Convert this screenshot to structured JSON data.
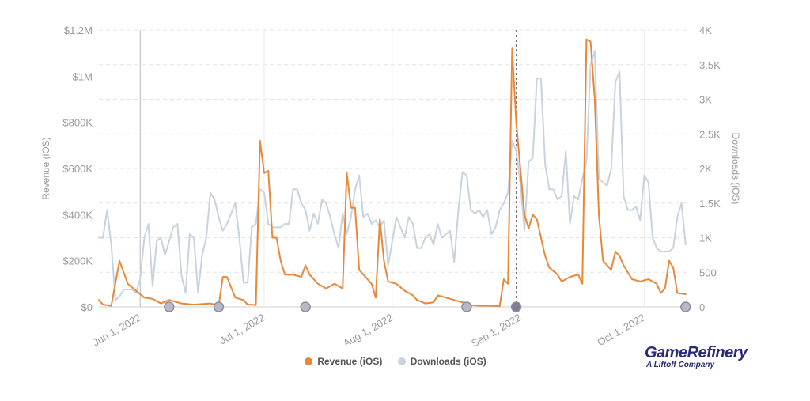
{
  "chart_data": {
    "type": "line",
    "title": "",
    "x_start": "2022-05-22",
    "x_end": "2022-10-12",
    "x_ticks": [
      {
        "date": "2022-06-01",
        "label": "Jun 1, 2022"
      },
      {
        "date": "2022-07-01",
        "label": "Jul 1, 2022"
      },
      {
        "date": "2022-08-01",
        "label": "Aug 1, 2022"
      },
      {
        "date": "2022-09-01",
        "label": "Sep 1, 2022"
      },
      {
        "date": "2022-10-01",
        "label": "Oct 1, 2022"
      }
    ],
    "y_left": {
      "label": "Revenue (iOS)",
      "range": [
        0,
        1200000
      ],
      "ticks": [
        {
          "value": 0,
          "label": "$0"
        },
        {
          "value": 200000,
          "label": "$200K"
        },
        {
          "value": 400000,
          "label": "$400K"
        },
        {
          "value": 600000,
          "label": "$600K"
        },
        {
          "value": 800000,
          "label": "$800K"
        },
        {
          "value": 1000000,
          "label": "$1M"
        },
        {
          "value": 1200000,
          "label": "$1.2M"
        }
      ]
    },
    "y_right": {
      "label": "Downloads (iOS)",
      "range": [
        0,
        4000
      ],
      "ticks": [
        {
          "value": 0,
          "label": "0"
        },
        {
          "value": 500,
          "label": "500"
        },
        {
          "value": 1000,
          "label": "1K"
        },
        {
          "value": 1500,
          "label": "1.5K"
        },
        {
          "value": 2000,
          "label": "2K"
        },
        {
          "value": 2500,
          "label": "2.5K"
        },
        {
          "value": 3000,
          "label": "3K"
        },
        {
          "value": 3500,
          "label": "3.5K"
        },
        {
          "value": 4000,
          "label": "4K"
        }
      ]
    },
    "grid": true,
    "legend_position": "bottom",
    "vertical_markers": [
      {
        "date": "2022-06-01",
        "style": "solid"
      },
      {
        "date": "2022-08-31",
        "style": "dashed"
      }
    ],
    "event_markers": [
      "2022-06-08",
      "2022-06-20",
      "2022-07-11",
      "2022-08-19",
      "2022-08-31",
      "2022-10-11"
    ],
    "series": [
      {
        "name": "Revenue (iOS)",
        "axis": "left",
        "color": "#e8883a",
        "points": [
          [
            "2022-05-22",
            30000
          ],
          [
            "2022-05-23",
            10000
          ],
          [
            "2022-05-25",
            5000
          ],
          [
            "2022-05-27",
            200000
          ],
          [
            "2022-05-29",
            100000
          ],
          [
            "2022-05-31",
            70000
          ],
          [
            "2022-06-02",
            40000
          ],
          [
            "2022-06-04",
            35000
          ],
          [
            "2022-06-06",
            15000
          ],
          [
            "2022-06-08",
            30000
          ],
          [
            "2022-06-11",
            15000
          ],
          [
            "2022-06-14",
            10000
          ],
          [
            "2022-06-18",
            15000
          ],
          [
            "2022-06-20",
            5000
          ],
          [
            "2022-06-21",
            130000
          ],
          [
            "2022-06-22",
            130000
          ],
          [
            "2022-06-24",
            40000
          ],
          [
            "2022-06-26",
            30000
          ],
          [
            "2022-06-27",
            10000
          ],
          [
            "2022-06-28",
            10000
          ],
          [
            "2022-06-29",
            8000
          ],
          [
            "2022-06-30",
            720000
          ],
          [
            "2022-07-01",
            580000
          ],
          [
            "2022-07-02",
            590000
          ],
          [
            "2022-07-03",
            300000
          ],
          [
            "2022-07-04",
            300000
          ],
          [
            "2022-07-05",
            200000
          ],
          [
            "2022-07-06",
            140000
          ],
          [
            "2022-07-08",
            140000
          ],
          [
            "2022-07-10",
            130000
          ],
          [
            "2022-07-11",
            180000
          ],
          [
            "2022-07-12",
            140000
          ],
          [
            "2022-07-14",
            100000
          ],
          [
            "2022-07-16",
            80000
          ],
          [
            "2022-07-18",
            100000
          ],
          [
            "2022-07-20",
            80000
          ],
          [
            "2022-07-21",
            580000
          ],
          [
            "2022-07-22",
            430000
          ],
          [
            "2022-07-23",
            430000
          ],
          [
            "2022-07-24",
            160000
          ],
          [
            "2022-07-26",
            120000
          ],
          [
            "2022-07-27",
            100000
          ],
          [
            "2022-07-28",
            40000
          ],
          [
            "2022-07-29",
            380000
          ],
          [
            "2022-07-30",
            200000
          ],
          [
            "2022-07-31",
            110000
          ],
          [
            "2022-08-02",
            100000
          ],
          [
            "2022-08-04",
            70000
          ],
          [
            "2022-08-06",
            50000
          ],
          [
            "2022-08-07",
            30000
          ],
          [
            "2022-08-09",
            15000
          ],
          [
            "2022-08-11",
            20000
          ],
          [
            "2022-08-12",
            50000
          ],
          [
            "2022-08-14",
            40000
          ],
          [
            "2022-08-16",
            30000
          ],
          [
            "2022-08-18",
            20000
          ],
          [
            "2022-08-20",
            8000
          ],
          [
            "2022-08-22",
            5000
          ],
          [
            "2022-08-25",
            5000
          ],
          [
            "2022-08-27",
            3000
          ],
          [
            "2022-08-28",
            120000
          ],
          [
            "2022-08-29",
            100000
          ],
          [
            "2022-08-30",
            1120000
          ],
          [
            "2022-08-31",
            800000
          ],
          [
            "2022-09-02",
            400000
          ],
          [
            "2022-09-03",
            340000
          ],
          [
            "2022-09-04",
            400000
          ],
          [
            "2022-09-05",
            380000
          ],
          [
            "2022-09-06",
            300000
          ],
          [
            "2022-09-07",
            220000
          ],
          [
            "2022-09-08",
            170000
          ],
          [
            "2022-09-10",
            140000
          ],
          [
            "2022-09-11",
            110000
          ],
          [
            "2022-09-13",
            130000
          ],
          [
            "2022-09-15",
            140000
          ],
          [
            "2022-09-16",
            100000
          ],
          [
            "2022-09-17",
            1160000
          ],
          [
            "2022-09-18",
            1150000
          ],
          [
            "2022-09-19",
            900000
          ],
          [
            "2022-09-20",
            400000
          ],
          [
            "2022-09-21",
            200000
          ],
          [
            "2022-09-23",
            160000
          ],
          [
            "2022-09-24",
            240000
          ],
          [
            "2022-09-25",
            220000
          ],
          [
            "2022-09-26",
            180000
          ],
          [
            "2022-09-28",
            120000
          ],
          [
            "2022-09-30",
            110000
          ],
          [
            "2022-10-02",
            120000
          ],
          [
            "2022-10-04",
            100000
          ],
          [
            "2022-10-05",
            60000
          ],
          [
            "2022-10-06",
            80000
          ],
          [
            "2022-10-07",
            200000
          ],
          [
            "2022-10-08",
            170000
          ],
          [
            "2022-10-09",
            60000
          ],
          [
            "2022-10-11",
            55000
          ]
        ]
      },
      {
        "name": "Downloads (iOS)",
        "axis": "right",
        "color": "#c8d3df",
        "points": [
          [
            "2022-05-22",
            1000
          ],
          [
            "2022-05-23",
            1000
          ],
          [
            "2022-05-24",
            1400
          ],
          [
            "2022-05-25",
            900
          ],
          [
            "2022-05-26",
            100
          ],
          [
            "2022-05-27",
            150
          ],
          [
            "2022-05-28",
            250
          ],
          [
            "2022-05-29",
            250
          ],
          [
            "2022-05-30",
            250
          ],
          [
            "2022-05-31",
            200
          ],
          [
            "2022-06-01",
            400
          ],
          [
            "2022-06-02",
            1000
          ],
          [
            "2022-06-03",
            1200
          ],
          [
            "2022-06-04",
            300
          ],
          [
            "2022-06-05",
            950
          ],
          [
            "2022-06-06",
            1000
          ],
          [
            "2022-06-07",
            750
          ],
          [
            "2022-06-08",
            950
          ],
          [
            "2022-06-09",
            1150
          ],
          [
            "2022-06-10",
            1200
          ],
          [
            "2022-06-11",
            450
          ],
          [
            "2022-06-12",
            200
          ],
          [
            "2022-06-13",
            1050
          ],
          [
            "2022-06-14",
            1000
          ],
          [
            "2022-06-15",
            200
          ],
          [
            "2022-06-16",
            750
          ],
          [
            "2022-06-17",
            1000
          ],
          [
            "2022-06-18",
            1650
          ],
          [
            "2022-06-19",
            1550
          ],
          [
            "2022-06-20",
            1300
          ],
          [
            "2022-06-21",
            1100
          ],
          [
            "2022-06-22",
            1200
          ],
          [
            "2022-06-23",
            1350
          ],
          [
            "2022-06-24",
            1500
          ],
          [
            "2022-06-25",
            1000
          ],
          [
            "2022-06-26",
            350
          ],
          [
            "2022-06-27",
            350
          ],
          [
            "2022-06-28",
            1150
          ],
          [
            "2022-06-29",
            1200
          ],
          [
            "2022-06-30",
            1700
          ],
          [
            "2022-07-01",
            1650
          ],
          [
            "2022-07-02",
            1200
          ],
          [
            "2022-07-03",
            1150
          ],
          [
            "2022-07-05",
            1150
          ],
          [
            "2022-07-06",
            1200
          ],
          [
            "2022-07-07",
            1200
          ],
          [
            "2022-07-08",
            1700
          ],
          [
            "2022-07-09",
            1700
          ],
          [
            "2022-07-10",
            1500
          ],
          [
            "2022-07-11",
            1400
          ],
          [
            "2022-07-12",
            1100
          ],
          [
            "2022-07-13",
            1350
          ],
          [
            "2022-07-14",
            1200
          ],
          [
            "2022-07-15",
            1550
          ],
          [
            "2022-07-16",
            1500
          ],
          [
            "2022-07-17",
            1300
          ],
          [
            "2022-07-18",
            1050
          ],
          [
            "2022-07-19",
            850
          ],
          [
            "2022-07-20",
            1350
          ],
          [
            "2022-07-21",
            1050
          ],
          [
            "2022-07-22",
            1300
          ],
          [
            "2022-07-23",
            1700
          ],
          [
            "2022-07-24",
            1900
          ],
          [
            "2022-07-25",
            1300
          ],
          [
            "2022-07-26",
            1350
          ],
          [
            "2022-07-27",
            1200
          ],
          [
            "2022-07-28",
            1250
          ],
          [
            "2022-07-29",
            1150
          ],
          [
            "2022-07-30",
            1250
          ],
          [
            "2022-07-31",
            600
          ],
          [
            "2022-08-01",
            950
          ],
          [
            "2022-08-02",
            1300
          ],
          [
            "2022-08-03",
            1150
          ],
          [
            "2022-08-04",
            1000
          ],
          [
            "2022-08-05",
            1300
          ],
          [
            "2022-08-06",
            1200
          ],
          [
            "2022-08-07",
            850
          ],
          [
            "2022-08-08",
            850
          ],
          [
            "2022-08-09",
            1000
          ],
          [
            "2022-08-10",
            1050
          ],
          [
            "2022-08-11",
            900
          ],
          [
            "2022-08-12",
            1200
          ],
          [
            "2022-08-13",
            1000
          ],
          [
            "2022-08-14",
            1050
          ],
          [
            "2022-08-15",
            1100
          ],
          [
            "2022-08-16",
            650
          ],
          [
            "2022-08-17",
            1400
          ],
          [
            "2022-08-18",
            1950
          ],
          [
            "2022-08-19",
            1900
          ],
          [
            "2022-08-20",
            1400
          ],
          [
            "2022-08-21",
            1350
          ],
          [
            "2022-08-22",
            1400
          ],
          [
            "2022-08-23",
            1300
          ],
          [
            "2022-08-24",
            1400
          ],
          [
            "2022-08-25",
            1050
          ],
          [
            "2022-08-26",
            1150
          ],
          [
            "2022-08-27",
            1400
          ],
          [
            "2022-08-28",
            1500
          ],
          [
            "2022-08-29",
            1650
          ],
          [
            "2022-08-30",
            2400
          ],
          [
            "2022-08-31",
            2250
          ],
          [
            "2022-09-01",
            1800
          ],
          [
            "2022-09-02",
            1100
          ],
          [
            "2022-09-03",
            2100
          ],
          [
            "2022-09-04",
            2150
          ],
          [
            "2022-09-05",
            3300
          ],
          [
            "2022-09-06",
            3300
          ],
          [
            "2022-09-07",
            2050
          ],
          [
            "2022-09-08",
            1700
          ],
          [
            "2022-09-09",
            1700
          ],
          [
            "2022-09-10",
            1550
          ],
          [
            "2022-09-11",
            1600
          ],
          [
            "2022-09-12",
            2250
          ],
          [
            "2022-09-13",
            1200
          ],
          [
            "2022-09-14",
            1600
          ],
          [
            "2022-09-15",
            1550
          ],
          [
            "2022-09-16",
            1850
          ],
          [
            "2022-09-17",
            2100
          ],
          [
            "2022-09-18",
            3500
          ],
          [
            "2022-09-19",
            3700
          ],
          [
            "2022-09-20",
            1850
          ],
          [
            "2022-09-21",
            1800
          ],
          [
            "2022-09-22",
            1750
          ],
          [
            "2022-09-23",
            2000
          ],
          [
            "2022-09-24",
            3250
          ],
          [
            "2022-09-25",
            3400
          ],
          [
            "2022-09-26",
            1600
          ],
          [
            "2022-09-27",
            1400
          ],
          [
            "2022-09-28",
            1400
          ],
          [
            "2022-09-29",
            1450
          ],
          [
            "2022-09-30",
            1250
          ],
          [
            "2022-10-01",
            1900
          ],
          [
            "2022-10-02",
            1800
          ],
          [
            "2022-10-03",
            1000
          ],
          [
            "2022-10-04",
            850
          ],
          [
            "2022-10-05",
            800
          ],
          [
            "2022-10-06",
            800
          ],
          [
            "2022-10-07",
            800
          ],
          [
            "2022-10-08",
            850
          ],
          [
            "2022-10-09",
            1300
          ],
          [
            "2022-10-10",
            1500
          ],
          [
            "2022-10-11",
            900
          ]
        ]
      }
    ]
  },
  "legend": {
    "items": [
      {
        "label": "Revenue (iOS)",
        "color": "#e8883a"
      },
      {
        "label": "Downloads (iOS)",
        "color": "#c8d3df"
      }
    ]
  },
  "brand": {
    "name": "GameRefinery",
    "sub": "A Liftoff Company"
  }
}
